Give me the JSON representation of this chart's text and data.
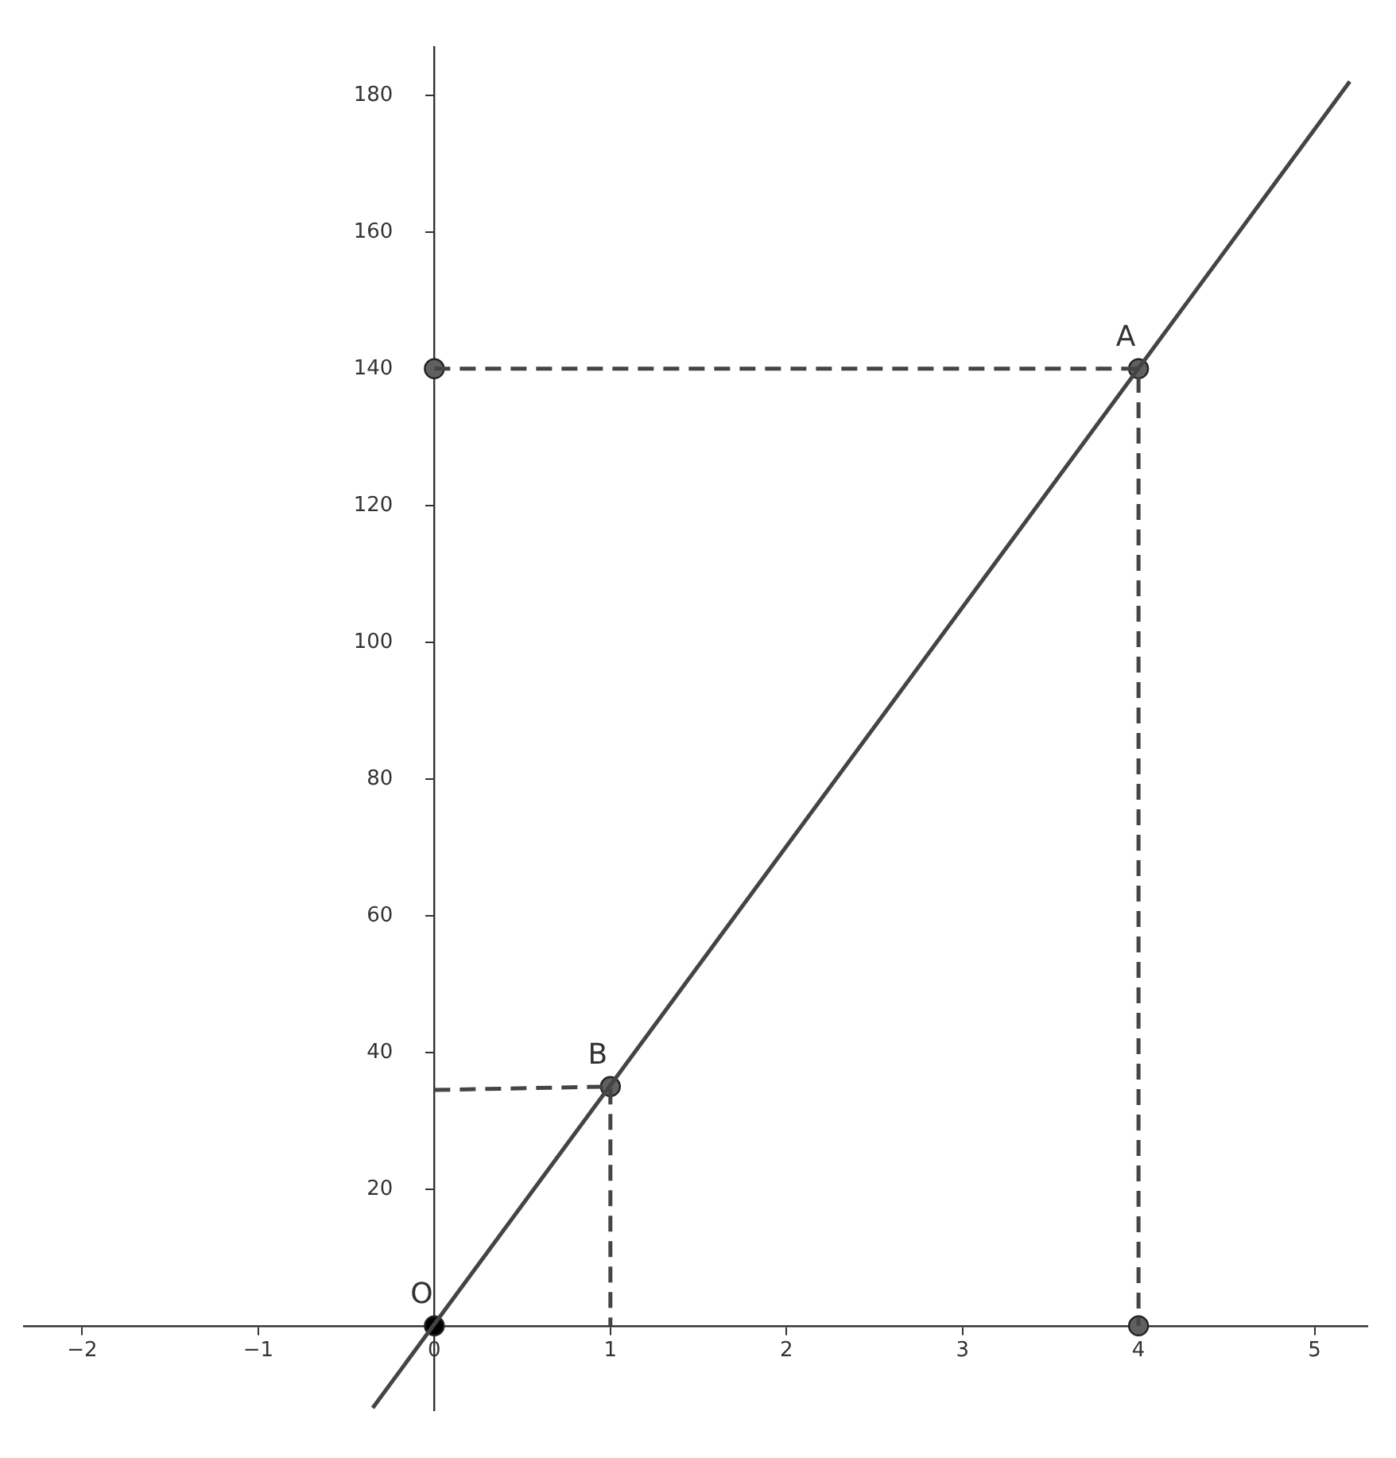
{
  "chart_data": {
    "type": "line",
    "xlim": [
      -2.33,
      5.3
    ],
    "ylim": [
      -12.4,
      187
    ],
    "xticks": [
      -2,
      -1,
      0,
      1,
      2,
      3,
      4,
      5
    ],
    "yticks": [
      20,
      40,
      60,
      80,
      100,
      120,
      140,
      160,
      180
    ],
    "grid": false,
    "legend": false,
    "series": [
      {
        "type": "line",
        "x": [
          -0.35,
          5.2
        ],
        "values": [
          -12,
          182
        ],
        "color": "#444444",
        "line_style": "solid",
        "marker": "none"
      },
      {
        "type": "line",
        "x": [
          0,
          4,
          4
        ],
        "values": [
          140,
          140,
          0
        ],
        "color": "#444444",
        "line_style": "dashed",
        "marker": "none"
      },
      {
        "type": "line",
        "x": [
          0,
          1,
          1
        ],
        "values": [
          34.5,
          35,
          0
        ],
        "color": "#444444",
        "line_style": "dashed",
        "marker": "none"
      },
      {
        "type": "scatter",
        "x": [
          4,
          1,
          0,
          4
        ],
        "values": [
          140,
          35,
          140,
          0
        ],
        "color": "#606060",
        "marker": "circle"
      },
      {
        "type": "scatter",
        "x": [
          0
        ],
        "values": [
          0
        ],
        "color": "#000000",
        "marker": "circle"
      }
    ],
    "annotations": [
      {
        "text": "A",
        "x": 4,
        "y": 140
      },
      {
        "text": "B",
        "x": 1,
        "y": 35
      },
      {
        "text": "O",
        "x": 0,
        "y": 0
      }
    ]
  }
}
